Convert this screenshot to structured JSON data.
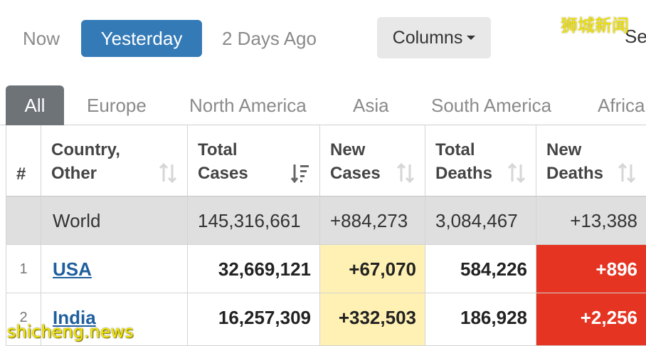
{
  "day_filters": {
    "now": "Now",
    "yesterday": "Yesterday",
    "two_days_ago": "2 Days Ago"
  },
  "columns_button": "Columns",
  "search_label_partial": "Se",
  "watermark_top": "狮城新闻",
  "watermark_bottom": "shicheng.news",
  "region_tabs": [
    "All",
    "Europe",
    "North America",
    "Asia",
    "South America",
    "Africa"
  ],
  "table": {
    "headers": {
      "index": "#",
      "country": [
        "Country,",
        "Other"
      ],
      "total_cases": [
        "Total",
        "Cases"
      ],
      "new_cases": [
        "New",
        "Cases"
      ],
      "total_deaths": [
        "Total",
        "Deaths"
      ],
      "new_deaths": [
        "New",
        "Deaths"
      ]
    },
    "world": {
      "country": "World",
      "total_cases": "145,316,661",
      "new_cases": "+884,273",
      "total_deaths": "3,084,467",
      "new_deaths": "+13,388"
    },
    "rows": [
      {
        "index": "1",
        "country": "USA",
        "total_cases": "32,669,121",
        "new_cases": "+67,070",
        "total_deaths": "584,226",
        "new_deaths": "+896"
      },
      {
        "index": "2",
        "country": "India",
        "total_cases": "16,257,309",
        "new_cases": "+332,503",
        "total_deaths": "186,928",
        "new_deaths": "+2,256"
      }
    ]
  },
  "colors": {
    "active_day": "#337ab7",
    "active_tab": "#6e7378",
    "new_cases_bg": "#fff1b3",
    "new_deaths_bg": "#e53422",
    "world_row_bg": "#dfdfdf",
    "link": "#1f5f9e"
  }
}
